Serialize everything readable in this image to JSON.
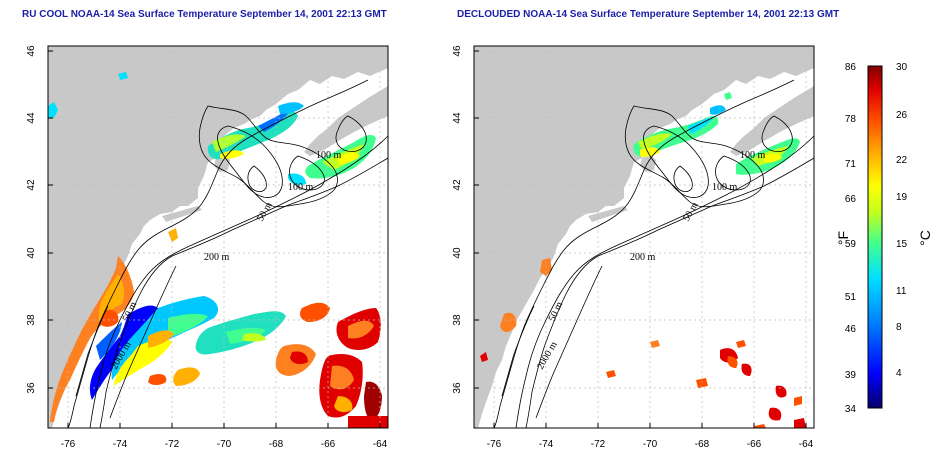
{
  "panels": [
    {
      "id": "left",
      "title": "RU COOL NOAA-14 Sea Surface Temperature September 14, 2001 22:13 GMT"
    },
    {
      "id": "right",
      "title": "DECLOUDED NOAA-14 Sea Surface Temperature September 14, 2001 22:13 GMT"
    }
  ],
  "axes": {
    "x_ticks": [
      "-76",
      "-74",
      "-72",
      "-70",
      "-68",
      "-66",
      "-64"
    ],
    "y_ticks": [
      "46",
      "44",
      "42",
      "40",
      "38",
      "36"
    ]
  },
  "contour_labels": {
    "left": [
      "100 m",
      "100 m",
      "50 m",
      "200 m",
      "50 m",
      "2000 m"
    ],
    "right": [
      "100 m",
      "100 m",
      "50 m",
      "200 m",
      "50 m",
      "2000 m"
    ]
  },
  "colorbar": {
    "f_values": [
      "86",
      "78",
      "71",
      "66",
      "59",
      "51",
      "46",
      "39",
      "34"
    ],
    "c_values": [
      "30",
      "26",
      "22",
      "19",
      "15",
      "11",
      "8",
      "4"
    ],
    "f_unit": "°F",
    "c_unit": "°C",
    "gradient_colors": [
      "#08006a",
      "#0000ff",
      "#0080ff",
      "#00e0ff",
      "#40ff90",
      "#c0ff20",
      "#ffff00",
      "#ffb000",
      "#ff5000",
      "#e00000",
      "#800000"
    ]
  },
  "colors": {
    "land": "#c8c8c8",
    "water": "#ffffff",
    "title": "#1b1fa8",
    "grid": "#bfbfbf"
  }
}
